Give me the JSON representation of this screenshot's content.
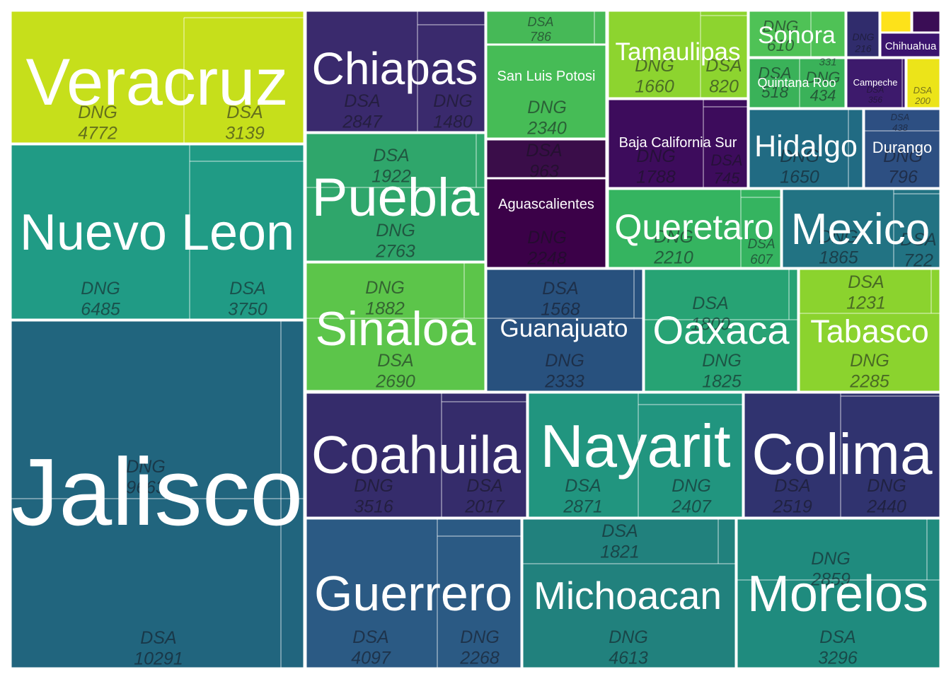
{
  "chart_data": {
    "type": "treemap",
    "title": "",
    "colors": {
      "Veracruz": "#c6df1b",
      "Nuevo Leon": "#209b85",
      "Jalisco": "#21657e",
      "Chiapas": "#3a2a6d",
      "Puebla": "#2fa66b",
      "Sinaloa": "#5cc54a",
      "Coahuila": "#352c6b",
      "Guerrero": "#2b5a84",
      "DSA 786 block": "#46b957",
      "San Luis Potosi": "#46bc56",
      "DSA 963 block": "#3a0d49",
      "Aguascalientes": "#3b0148",
      "Guanajuato": "#28517e",
      "Nayarit": "#21957f",
      "Michoacan": "#21817d",
      "Tamaulipas": "#8dd42f",
      "Baja California Sur": "#3d0c5c",
      "Queretaro": "#35b460",
      "Oaxaca": "#27a374",
      "Colima": "#30336f",
      "Morelos": "#1f8b7e",
      "Sonora": "#4fc256",
      "Quintana Roo": "#3ab259",
      "Hidalgo": "#216b83",
      "Mexico": "#227383",
      "Tabasco": "#8bd32e",
      "DNG 216 block": "#302c6c",
      "Chihuahua": "#3b146e",
      "Campeche": "#3d1a6c",
      "DSA 200 block": "#ece419",
      "Durango": "#2d4f82",
      "tiny yellow": "#fde21a",
      "tiny purple": "#3a0d55"
    },
    "states": [
      {
        "name": "Veracruz",
        "tiles": [
          {
            "label": "DNG",
            "value": 4772
          },
          {
            "label": "DSA",
            "value": 3139
          }
        ]
      },
      {
        "name": "Nuevo Leon",
        "tiles": [
          {
            "label": "DNG",
            "value": 6485
          },
          {
            "label": "DSA",
            "value": 3750
          }
        ]
      },
      {
        "name": "Jalisco",
        "tiles": [
          {
            "label": "DNG",
            "value": 9663
          },
          {
            "label": "DSA",
            "value": 10291
          }
        ]
      },
      {
        "name": "Chiapas",
        "tiles": [
          {
            "label": "DSA",
            "value": 2847
          },
          {
            "label": "DNG",
            "value": 1480
          }
        ]
      },
      {
        "name": "Puebla",
        "tiles": [
          {
            "label": "DSA",
            "value": 1922
          },
          {
            "label": "DNG",
            "value": 2763
          }
        ]
      },
      {
        "name": "Sinaloa",
        "tiles": [
          {
            "label": "DNG",
            "value": 1882
          },
          {
            "label": "DSA",
            "value": 2690
          }
        ]
      },
      {
        "name": "Coahuila",
        "tiles": [
          {
            "label": "DNG",
            "value": 3516
          },
          {
            "label": "DSA",
            "value": 2017
          }
        ]
      },
      {
        "name": "Guerrero",
        "tiles": [
          {
            "label": "DSA",
            "value": 4097
          },
          {
            "label": "DNG",
            "value": 2268
          }
        ]
      },
      {
        "name": "San  Luis Potosi",
        "tiles": [
          {
            "label": "DSA",
            "value": 786
          },
          {
            "label": "DNG",
            "value": 2340
          }
        ]
      },
      {
        "name": "Aguascalientes",
        "tiles": [
          {
            "label": "DSA",
            "value": 963
          },
          {
            "label": "DNG",
            "value": 2248
          }
        ]
      },
      {
        "name": "Guanajuato",
        "tiles": [
          {
            "label": "DSA",
            "value": 1568
          },
          {
            "label": "DNG",
            "value": 2333
          }
        ]
      },
      {
        "name": "Nayarit",
        "tiles": [
          {
            "label": "DSA",
            "value": 2871
          },
          {
            "label": "DNG",
            "value": 2407
          }
        ]
      },
      {
        "name": "Michoacan",
        "tiles": [
          {
            "label": "DSA",
            "value": 1821
          },
          {
            "label": "DNG",
            "value": 4613
          }
        ]
      },
      {
        "name": "Tamaulipas",
        "tiles": [
          {
            "label": "DNG",
            "value": 1660
          },
          {
            "label": "DSA",
            "value": 820
          }
        ]
      },
      {
        "name": "Baja California Sur",
        "tiles": [
          {
            "label": "DNG",
            "value": 1788
          },
          {
            "label": "DSA",
            "value": 745
          }
        ]
      },
      {
        "name": "Queretaro",
        "tiles": [
          {
            "label": "DNG",
            "value": 2210
          },
          {
            "label": "DSA",
            "value": 607
          }
        ]
      },
      {
        "name": "Oaxaca",
        "tiles": [
          {
            "label": "DSA",
            "value": 1800
          },
          {
            "label": "DNG",
            "value": 1825
          }
        ]
      },
      {
        "name": "Colima",
        "tiles": [
          {
            "label": "DSA",
            "value": 2519
          },
          {
            "label": "DNG",
            "value": 2440
          }
        ]
      },
      {
        "name": "Morelos",
        "tiles": [
          {
            "label": "DNG",
            "value": 2859
          },
          {
            "label": "DSA",
            "value": 3296
          }
        ]
      },
      {
        "name": "Sonora",
        "tiles": [
          {
            "label": "DNG",
            "value": 610
          },
          {
            "label": "",
            "value": 331
          }
        ]
      },
      {
        "name": "Quintana Roo",
        "tiles": [
          {
            "label": "DSA",
            "value": 518
          },
          {
            "label": "DNG",
            "value": 434
          }
        ]
      },
      {
        "name": "Hidalgo",
        "tiles": [
          {
            "label": "DNG",
            "value": 1650
          }
        ]
      },
      {
        "name": "Mexico",
        "tiles": [
          {
            "label": "DNG",
            "value": 1865
          },
          {
            "label": "DSA",
            "value": 722
          }
        ]
      },
      {
        "name": "Tabasco",
        "tiles": [
          {
            "label": "DSA",
            "value": 1231
          },
          {
            "label": "DNG",
            "value": 2285
          }
        ]
      },
      {
        "name": "Chihuahua",
        "tiles": [
          {
            "label": "DNG",
            "value": 216
          }
        ]
      },
      {
        "name": "Campeche",
        "tiles": [
          {
            "label": "DSA",
            "value": 356
          },
          {
            "label": "DSA",
            "value": 200
          }
        ]
      },
      {
        "name": "Durango",
        "tiles": [
          {
            "label": "DSA",
            "value": 438
          },
          {
            "label": "DNG",
            "value": 796
          }
        ]
      }
    ]
  }
}
